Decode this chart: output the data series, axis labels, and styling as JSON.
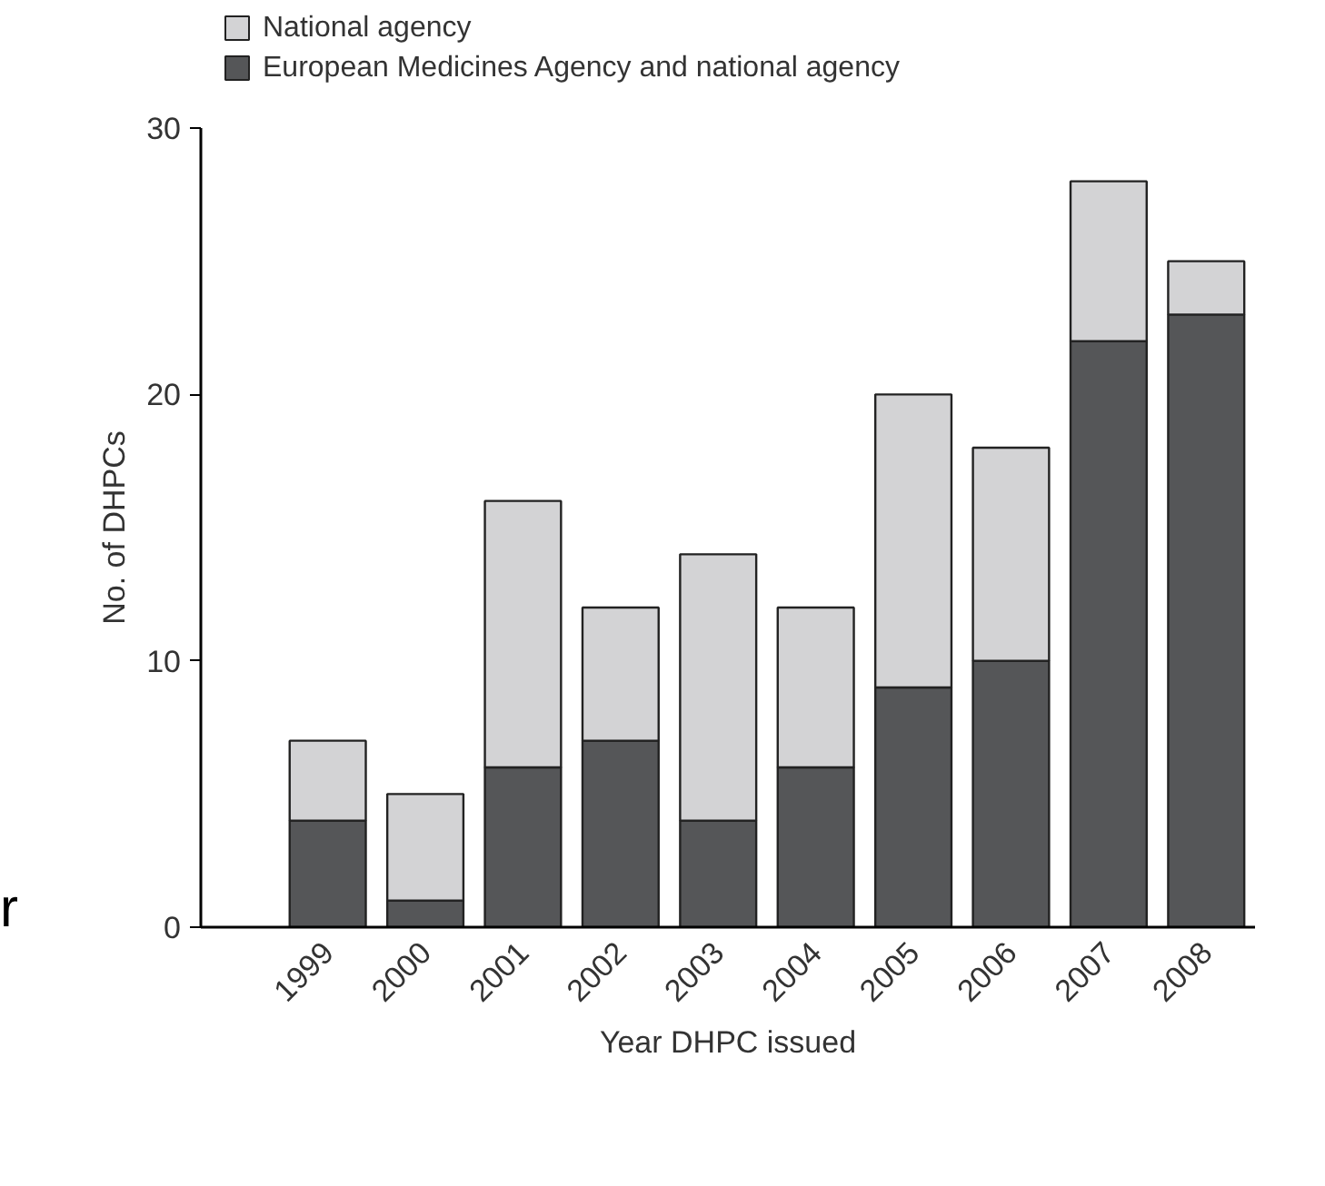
{
  "chart_data": {
    "type": "bar",
    "stacked": true,
    "xlabel": "Year DHPC issued",
    "ylabel": "No. of DHPCs",
    "categories": [
      "1999",
      "2000",
      "2001",
      "2002",
      "2003",
      "2004",
      "2005",
      "2006",
      "2007",
      "2008"
    ],
    "series": [
      {
        "name": "European Medicines Agency and national agency",
        "color": "#555658",
        "values": [
          4,
          1,
          6,
          7,
          4,
          6,
          9,
          10,
          22,
          23
        ]
      },
      {
        "name": "National agency",
        "color": "#d3d3d5",
        "values": [
          3,
          4,
          10,
          5,
          10,
          6,
          11,
          8,
          6,
          2
        ]
      }
    ],
    "ylim": [
      0,
      30
    ],
    "yticks": [
      0,
      10,
      20,
      30
    ],
    "grid": false,
    "legend": "top left",
    "annotations": [
      "r"
    ]
  }
}
